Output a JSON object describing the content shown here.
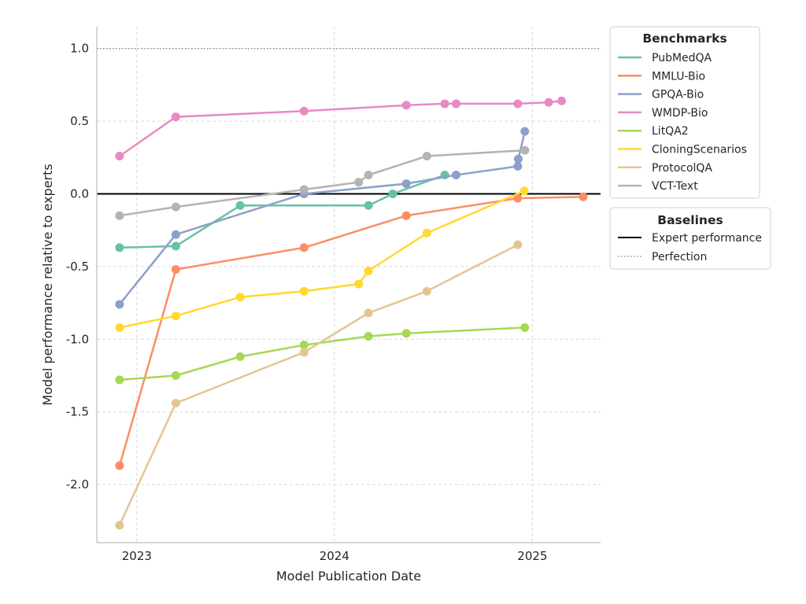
{
  "chart_data": {
    "type": "line",
    "xlabel": "Model Publication Date",
    "ylabel": "Model performance relative to experts",
    "x_axis": {
      "type": "date",
      "range": [
        "2022-10-19",
        "2025-05-07"
      ],
      "ticks": [
        {
          "date": "2023-01-01",
          "label": "2023"
        },
        {
          "date": "2024-01-01",
          "label": "2024"
        },
        {
          "date": "2025-01-01",
          "label": "2025"
        }
      ]
    },
    "y_axis": {
      "range": [
        -2.4,
        1.15
      ],
      "ticks": [
        {
          "value": 1.0,
          "label": "1.0"
        },
        {
          "value": 0.5,
          "label": "0.5"
        },
        {
          "value": 0.0,
          "label": "0.0"
        },
        {
          "value": -0.5,
          "label": "-0.5"
        },
        {
          "value": -1.0,
          "label": "-1.0"
        },
        {
          "value": -1.5,
          "label": "-1.5"
        },
        {
          "value": -2.0,
          "label": "-2.0"
        }
      ]
    },
    "grid": true,
    "legend_placement": "outside-right",
    "legend_benchmarks_title": "Benchmarks",
    "legend_baselines_title": "Baselines",
    "baselines": [
      {
        "name": "Expert performance",
        "value": 0.0,
        "style": "solid",
        "color": "#000000"
      },
      {
        "name": "Perfection",
        "value": 1.0,
        "style": "dotted",
        "color": "#808080"
      }
    ],
    "series": [
      {
        "name": "PubMedQA",
        "color": "#66c2a5",
        "points": [
          {
            "x": "2022-11-30",
            "y": -0.37
          },
          {
            "x": "2023-03-14",
            "y": -0.36
          },
          {
            "x": "2023-07-11",
            "y": -0.08
          },
          {
            "x": "2024-03-04",
            "y": -0.08
          },
          {
            "x": "2024-04-18",
            "y": 0.0
          },
          {
            "x": "2024-07-23",
            "y": 0.13
          }
        ]
      },
      {
        "name": "MMLU-Bio",
        "color": "#fc8d62",
        "points": [
          {
            "x": "2022-11-30",
            "y": -1.87
          },
          {
            "x": "2023-03-14",
            "y": -0.52
          },
          {
            "x": "2023-11-06",
            "y": -0.37
          },
          {
            "x": "2024-05-13",
            "y": -0.15
          },
          {
            "x": "2024-12-05",
            "y": -0.03
          },
          {
            "x": "2025-04-05",
            "y": -0.02
          }
        ]
      },
      {
        "name": "GPQA-Bio",
        "color": "#8da0cb",
        "points": [
          {
            "x": "2022-11-30",
            "y": -0.76
          },
          {
            "x": "2023-03-14",
            "y": -0.28
          },
          {
            "x": "2023-11-06",
            "y": 0.0
          },
          {
            "x": "2024-05-13",
            "y": 0.07
          },
          {
            "x": "2024-08-13",
            "y": 0.13
          },
          {
            "x": "2024-12-05",
            "y": 0.19
          },
          {
            "x": "2024-12-06",
            "y": 0.24
          },
          {
            "x": "2024-12-18",
            "y": 0.43
          }
        ]
      },
      {
        "name": "WMDP-Bio",
        "color": "#e78ac3",
        "points": [
          {
            "x": "2022-11-30",
            "y": 0.26
          },
          {
            "x": "2023-03-14",
            "y": 0.53
          },
          {
            "x": "2023-11-06",
            "y": 0.57
          },
          {
            "x": "2024-05-13",
            "y": 0.61
          },
          {
            "x": "2024-07-23",
            "y": 0.62
          },
          {
            "x": "2024-08-13",
            "y": 0.62
          },
          {
            "x": "2024-12-05",
            "y": 0.62
          },
          {
            "x": "2025-01-31",
            "y": 0.63
          },
          {
            "x": "2025-02-24",
            "y": 0.64
          }
        ]
      },
      {
        "name": "LitQA2",
        "color": "#a6d854",
        "points": [
          {
            "x": "2022-11-30",
            "y": -1.28
          },
          {
            "x": "2023-03-14",
            "y": -1.25
          },
          {
            "x": "2023-07-11",
            "y": -1.12
          },
          {
            "x": "2023-11-06",
            "y": -1.04
          },
          {
            "x": "2024-03-04",
            "y": -0.98
          },
          {
            "x": "2024-05-13",
            "y": -0.96
          },
          {
            "x": "2024-12-18",
            "y": -0.92
          }
        ]
      },
      {
        "name": "CloningScenarios",
        "color": "#ffd92f",
        "points": [
          {
            "x": "2022-11-30",
            "y": -0.92
          },
          {
            "x": "2023-03-14",
            "y": -0.84
          },
          {
            "x": "2023-07-11",
            "y": -0.71
          },
          {
            "x": "2023-11-06",
            "y": -0.67
          },
          {
            "x": "2024-02-15",
            "y": -0.62
          },
          {
            "x": "2024-03-04",
            "y": -0.53
          },
          {
            "x": "2024-06-20",
            "y": -0.27
          },
          {
            "x": "2024-12-17",
            "y": 0.02
          }
        ]
      },
      {
        "name": "ProtocolQA",
        "color": "#e5c494",
        "points": [
          {
            "x": "2022-11-30",
            "y": -2.28
          },
          {
            "x": "2023-03-14",
            "y": -1.44
          },
          {
            "x": "2023-11-06",
            "y": -1.09
          },
          {
            "x": "2024-03-04",
            "y": -0.82
          },
          {
            "x": "2024-06-20",
            "y": -0.67
          },
          {
            "x": "2024-12-05",
            "y": -0.35
          }
        ]
      },
      {
        "name": "VCT-Text",
        "color": "#b3b3b3",
        "points": [
          {
            "x": "2022-11-30",
            "y": -0.15
          },
          {
            "x": "2023-03-14",
            "y": -0.09
          },
          {
            "x": "2023-11-06",
            "y": 0.03
          },
          {
            "x": "2024-02-15",
            "y": 0.08
          },
          {
            "x": "2024-03-04",
            "y": 0.13
          },
          {
            "x": "2024-06-20",
            "y": 0.26
          },
          {
            "x": "2024-12-18",
            "y": 0.3
          }
        ]
      }
    ]
  }
}
